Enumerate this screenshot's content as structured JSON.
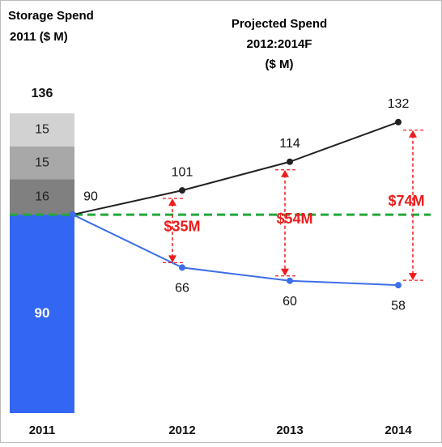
{
  "chart_data": {
    "type": "combo",
    "title": "Storage Spend",
    "subtitle": "2011  ($ M)",
    "right_title": [
      "Projected Spend",
      "2012:2014F",
      "($ M)"
    ],
    "categories": [
      "2011",
      "2012",
      "2013",
      "2014"
    ],
    "stack": {
      "values": [
        90,
        16,
        15,
        15
      ],
      "colors": [
        "#3366f2",
        "#808080",
        "#a8a8a8",
        "#d2d2d2"
      ],
      "label_colors": [
        "#ffffff",
        "#222222",
        "#222222",
        "#222222"
      ]
    },
    "stack_total": 136,
    "series": [
      {
        "color": "#222222",
        "values": [
          90,
          101,
          114,
          132
        ],
        "show_first_label": true
      },
      {
        "color": "#3d6ee8",
        "values": [
          90,
          66,
          60,
          58
        ],
        "show_first_label": false
      }
    ],
    "gap_labels": [
      null,
      "$35M",
      "$54M",
      "$74M"
    ],
    "gap_color": "#ee1c1c",
    "reference_color": "#22a83a",
    "ylim": [
      0,
      140
    ]
  }
}
